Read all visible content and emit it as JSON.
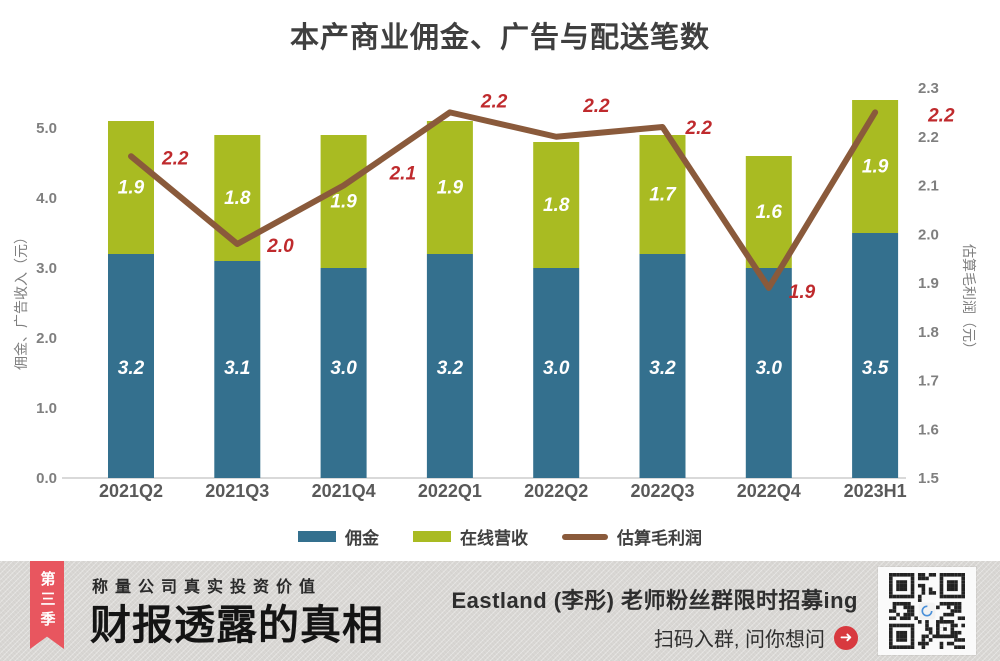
{
  "title": "本产商业佣金、广告与配送笔数",
  "chart_data": {
    "type": "bar+line",
    "categories": [
      "2021Q2",
      "2021Q3",
      "2021Q4",
      "2022Q1",
      "2022Q2",
      "2022Q3",
      "2022Q4",
      "2023H1"
    ],
    "series": [
      {
        "name": "佣金",
        "type": "bar",
        "color": "#34708e",
        "values": [
          3.2,
          3.1,
          3.0,
          3.2,
          3.0,
          3.2,
          3.0,
          3.5
        ]
      },
      {
        "name": "在线营收",
        "type": "bar",
        "color": "#a9bb22",
        "values": [
          1.9,
          1.8,
          1.9,
          1.9,
          1.8,
          1.7,
          1.6,
          1.9
        ]
      },
      {
        "name": "估算毛利润",
        "type": "line",
        "color": "#8a5a3b",
        "axis": "right",
        "values": [
          2.2,
          2.0,
          2.1,
          2.2,
          2.2,
          2.2,
          1.9,
          2.2
        ],
        "plot_values": [
          2.16,
          1.98,
          2.1,
          2.25,
          2.2,
          2.22,
          1.89,
          2.25
        ],
        "label_color": "#bf2a2d",
        "label_offsets": [
          [
            31,
            2
          ],
          [
            30,
            2
          ],
          [
            46,
            -12
          ],
          [
            31,
            -11
          ],
          [
            27,
            -31
          ],
          [
            23,
            1
          ],
          [
            20,
            4
          ],
          [
            53,
            3
          ]
        ]
      }
    ],
    "left_axis": {
      "label": "佣金、广告收入（元）",
      "min": 0,
      "max": 5,
      "ticks": [
        "0.0",
        "1.0",
        "2.0",
        "3.0",
        "4.0",
        "5.0"
      ]
    },
    "right_axis": {
      "label": "估算毛利润（元）",
      "min": 1.5,
      "max": 2.3,
      "ticks": [
        "1.5",
        "1.6",
        "1.7",
        "1.8",
        "1.9",
        "2.0",
        "2.1",
        "2.2",
        "2.3"
      ]
    },
    "legend": [
      "佣金",
      "在线营收",
      "估算毛利润"
    ],
    "bar_label_color": "#ffffff",
    "tick_color": "#7f7f7f",
    "axis_line_color": "#d9d9d9",
    "category_label_color": "#595959"
  },
  "banner": {
    "ribbon": "第三季",
    "tagline": "称量公司真实投资价值",
    "brand": "财报透露的真相",
    "promo_line1": "Eastland (李彤) 老师粉丝群限时招募ing",
    "promo_line2": "扫码入群, 问你想问",
    "arrow_icon": "➜",
    "ribbon_color": "#e8565f",
    "arrow_color": "#d8393f"
  }
}
